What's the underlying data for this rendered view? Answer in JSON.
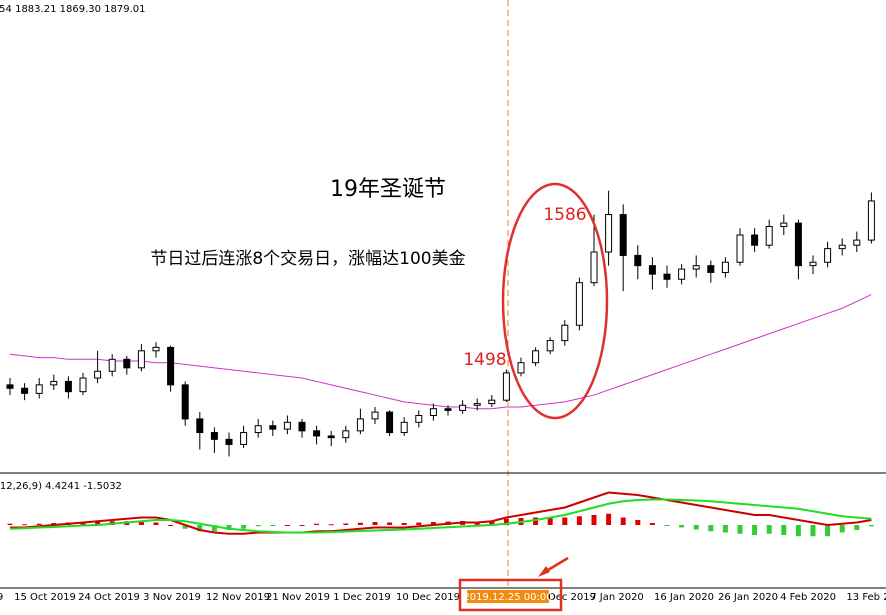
{
  "header_text": ".54 1883.21 1869.30 1879.01",
  "annotations": {
    "title": "19年圣诞节",
    "note": "节日过后连涨8个交易日，涨幅达100美金",
    "low_label": "1498",
    "high_label": "1586"
  },
  "macd_label": "(12,26,9) 4.4241 -1.5032",
  "time_labels": [
    "9",
    "15 Oct 2019",
    "24 Oct 2019",
    "3 Nov 2019",
    "12 Nov 2019",
    "21 Nov 2019",
    "1 Dec 2019",
    "10 Dec 2019",
    "2019.12.25 00:00",
    "Dec 2019",
    "7 Jan 2020",
    "16 Jan 2020",
    "26 Jan 2020",
    "4 Feb 2020",
    "13 Feb 2"
  ],
  "chart_data": {
    "type": "candlestick",
    "ylim": [
      1440,
      1716
    ],
    "candles": [
      [
        1490,
        1494,
        1484,
        1488
      ],
      [
        1488,
        1491,
        1481,
        1485
      ],
      [
        1485,
        1494,
        1482,
        1490
      ],
      [
        1490,
        1496,
        1487,
        1492
      ],
      [
        1492,
        1495,
        1482,
        1486
      ],
      [
        1486,
        1497,
        1484,
        1494
      ],
      [
        1494,
        1510,
        1491,
        1498
      ],
      [
        1498,
        1508,
        1495,
        1505
      ],
      [
        1505,
        1507,
        1496,
        1500
      ],
      [
        1500,
        1514,
        1498,
        1510
      ],
      [
        1510,
        1515,
        1506,
        1512
      ],
      [
        1512,
        1513,
        1486,
        1490
      ],
      [
        1490,
        1492,
        1466,
        1470
      ],
      [
        1470,
        1474,
        1452,
        1462
      ],
      [
        1462,
        1465,
        1450,
        1458
      ],
      [
        1458,
        1462,
        1448,
        1455
      ],
      [
        1455,
        1466,
        1453,
        1462
      ],
      [
        1462,
        1470,
        1459,
        1466
      ],
      [
        1466,
        1469,
        1460,
        1464
      ],
      [
        1464,
        1472,
        1461,
        1468
      ],
      [
        1468,
        1470,
        1459,
        1463
      ],
      [
        1463,
        1466,
        1455,
        1460
      ],
      [
        1460,
        1463,
        1454,
        1459
      ],
      [
        1459,
        1466,
        1456,
        1463
      ],
      [
        1463,
        1476,
        1461,
        1470
      ],
      [
        1470,
        1477,
        1467,
        1474
      ],
      [
        1474,
        1475,
        1460,
        1462
      ],
      [
        1462,
        1471,
        1460,
        1468
      ],
      [
        1468,
        1475,
        1465,
        1472
      ],
      [
        1472,
        1479,
        1469,
        1476
      ],
      [
        1476,
        1478,
        1472,
        1475
      ],
      [
        1475,
        1481,
        1473,
        1478
      ],
      [
        1478,
        1482,
        1475,
        1479
      ],
      [
        1479,
        1484,
        1477,
        1481
      ],
      [
        1481,
        1499,
        1480,
        1497
      ],
      [
        1497,
        1506,
        1495,
        1503
      ],
      [
        1503,
        1512,
        1501,
        1510
      ],
      [
        1510,
        1518,
        1508,
        1516
      ],
      [
        1516,
        1528,
        1513,
        1525
      ],
      [
        1525,
        1553,
        1522,
        1550
      ],
      [
        1550,
        1590,
        1548,
        1568
      ],
      [
        1568,
        1604,
        1560,
        1590
      ],
      [
        1590,
        1596,
        1545,
        1566
      ],
      [
        1566,
        1572,
        1552,
        1560
      ],
      [
        1560,
        1565,
        1546,
        1555
      ],
      [
        1555,
        1560,
        1547,
        1552
      ],
      [
        1552,
        1561,
        1549,
        1558
      ],
      [
        1558,
        1566,
        1553,
        1560
      ],
      [
        1560,
        1563,
        1550,
        1556
      ],
      [
        1556,
        1565,
        1553,
        1562
      ],
      [
        1562,
        1582,
        1560,
        1578
      ],
      [
        1578,
        1582,
        1568,
        1572
      ],
      [
        1572,
        1587,
        1570,
        1583
      ],
      [
        1583,
        1590,
        1578,
        1585
      ],
      [
        1585,
        1587,
        1552,
        1560
      ],
      [
        1560,
        1566,
        1555,
        1562
      ],
      [
        1562,
        1574,
        1559,
        1570
      ],
      [
        1570,
        1576,
        1566,
        1572
      ],
      [
        1572,
        1580,
        1568,
        1575
      ],
      [
        1575,
        1603,
        1573,
        1598
      ]
    ],
    "ma": {
      "color": "#cc33cc",
      "values": [
        1508,
        1507,
        1506,
        1506,
        1505,
        1505,
        1505,
        1504,
        1504,
        1504,
        1503,
        1503,
        1502,
        1501,
        1500,
        1499,
        1498,
        1497,
        1496,
        1495,
        1494,
        1492,
        1490,
        1488,
        1486,
        1484,
        1482,
        1480,
        1479,
        1478,
        1477,
        1477,
        1476,
        1476,
        1477,
        1477,
        1478,
        1479,
        1480,
        1482,
        1484,
        1487,
        1490,
        1493,
        1496,
        1499,
        1502,
        1505,
        1508,
        1511,
        1514,
        1517,
        1520,
        1523,
        1526,
        1529,
        1532,
        1535,
        1539,
        1543
      ]
    },
    "macd": {
      "ylim": [
        -26,
        14
      ],
      "hist": [
        0.5,
        0.3,
        0.5,
        0.8,
        1,
        1.2,
        1.5,
        1.5,
        1.5,
        1.5,
        1,
        0,
        -1.5,
        -2.5,
        -2.5,
        -2,
        -1.5,
        -0.5,
        -0.2,
        0,
        0,
        0.5,
        0.3,
        0.6,
        0.9,
        1.2,
        1,
        0.8,
        1,
        1.2,
        1.4,
        1.6,
        1.3,
        1.5,
        2.5,
        2.8,
        3,
        3,
        3,
        3.5,
        4,
        4.5,
        3,
        2,
        0.8,
        -0.2,
        -1,
        -1.8,
        -2.5,
        -3,
        -3.5,
        -4,
        -3.5,
        -4,
        -4.5,
        -4.5,
        -4.5,
        -3,
        -2,
        -0.5
      ],
      "pos_color": "#dd0000",
      "neg_color": "#33cc33",
      "lines": [
        {
          "color": "#cc0000",
          "values": [
            -1,
            -1,
            -0.5,
            0,
            0.5,
            1,
            1.5,
            2,
            2.5,
            3,
            3,
            2,
            0,
            -2,
            -3,
            -3.5,
            -3.5,
            -3,
            -3,
            -3,
            -3,
            -2.5,
            -2.5,
            -2,
            -1.5,
            -1,
            -1,
            -1,
            -0.5,
            0,
            0.5,
            1,
            1,
            1.5,
            3,
            4,
            5,
            6,
            7,
            9,
            11,
            13,
            12.5,
            12,
            11,
            10,
            9,
            8,
            7,
            6,
            5,
            4,
            4,
            3,
            2,
            1,
            0,
            0.5,
            1,
            2
          ]
        },
        {
          "color": "#22dd22",
          "values": [
            -1.5,
            -1.3,
            -1,
            -0.8,
            -0.5,
            -0.2,
            0,
            0.5,
            1,
            1.5,
            2,
            2,
            1.5,
            0.5,
            -0.5,
            -1.5,
            -2,
            -2.5,
            -2.8,
            -3,
            -3,
            -3,
            -2.8,
            -2.6,
            -2.4,
            -2.2,
            -2,
            -1.8,
            -1.5,
            -1.2,
            -0.9,
            -0.6,
            -0.3,
            0,
            0.5,
            1.2,
            2,
            3,
            4,
            5.5,
            7,
            8.5,
            9.5,
            10,
            10.2,
            10.2,
            10,
            9.8,
            9.5,
            9,
            8.5,
            8,
            7.5,
            7,
            6.5,
            5.5,
            4.5,
            3.5,
            3,
            2.5
          ]
        }
      ]
    }
  }
}
